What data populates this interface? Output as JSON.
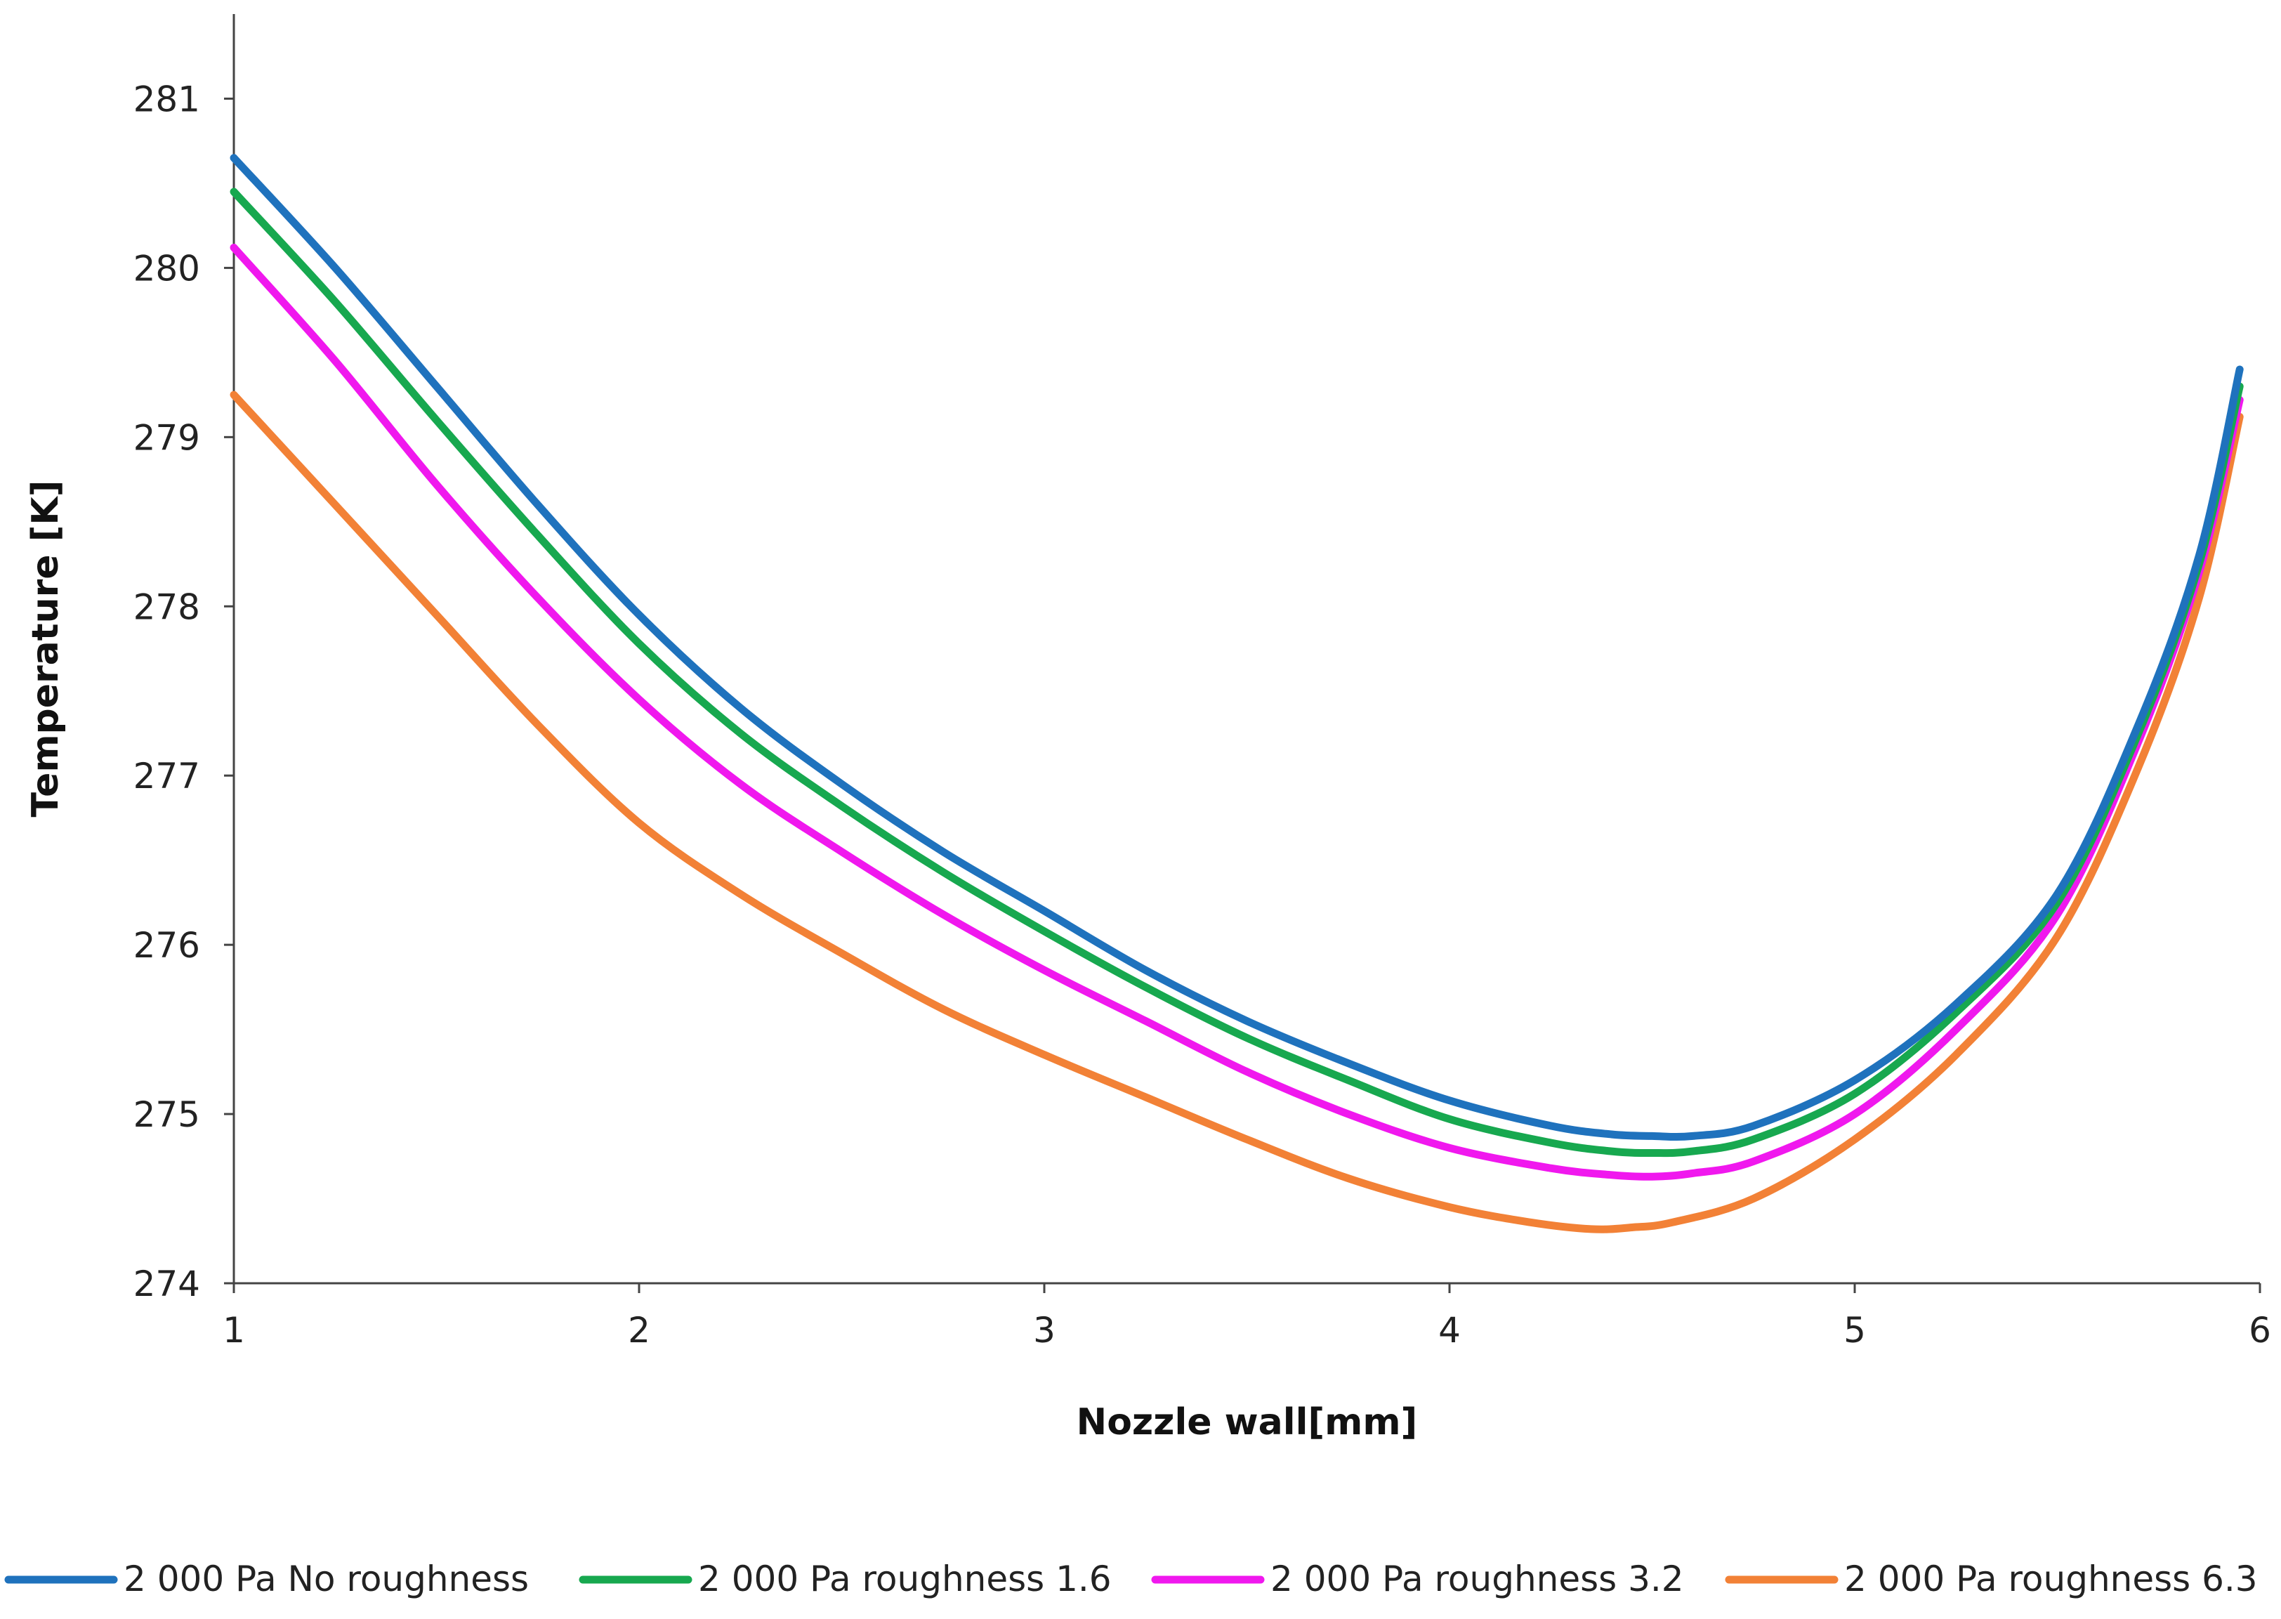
{
  "chart_data": {
    "type": "line",
    "title": "",
    "xlabel": "Nozzle wall[mm]",
    "ylabel": "Temperature [K]",
    "xlim": [
      1,
      6
    ],
    "ylim": [
      274,
      281.5
    ],
    "xticks": [
      1,
      2,
      3,
      4,
      5,
      6
    ],
    "yticks": [
      274,
      275,
      276,
      277,
      278,
      279,
      280,
      281
    ],
    "grid": false,
    "legend_position": "bottom",
    "series": [
      {
        "name": "2 000 Pa No roughness",
        "color": "#1F72BD",
        "x": [
          1.0,
          1.25,
          1.5,
          1.75,
          2.0,
          2.25,
          2.5,
          2.75,
          3.0,
          3.25,
          3.5,
          3.75,
          4.0,
          4.25,
          4.4,
          4.5,
          4.6,
          4.75,
          5.0,
          5.25,
          5.5,
          5.7,
          5.85,
          5.95
        ],
        "y": [
          280.65,
          280.0,
          279.3,
          278.6,
          277.95,
          277.4,
          276.95,
          276.55,
          276.2,
          275.85,
          275.55,
          275.3,
          275.08,
          274.93,
          274.88,
          274.87,
          274.87,
          274.93,
          275.2,
          275.65,
          276.3,
          277.3,
          278.3,
          279.4
        ]
      },
      {
        "name": "2 000 Pa roughness 1.6",
        "color": "#17A84F",
        "x": [
          1.0,
          1.25,
          1.5,
          1.75,
          2.0,
          2.25,
          2.5,
          2.75,
          3.0,
          3.25,
          3.5,
          3.75,
          4.0,
          4.25,
          4.4,
          4.5,
          4.6,
          4.75,
          5.0,
          5.25,
          5.5,
          5.7,
          5.85,
          5.95
        ],
        "y": [
          280.45,
          279.8,
          279.1,
          278.42,
          277.78,
          277.25,
          276.82,
          276.43,
          276.08,
          275.75,
          275.45,
          275.2,
          274.97,
          274.83,
          274.78,
          274.77,
          274.78,
          274.85,
          275.12,
          275.6,
          276.25,
          277.25,
          278.25,
          279.3
        ]
      },
      {
        "name": "2 000 Pa roughness 3.2",
        "color": "#F018EE",
        "x": [
          1.0,
          1.25,
          1.5,
          1.75,
          2.0,
          2.25,
          2.5,
          2.75,
          3.0,
          3.25,
          3.5,
          3.75,
          4.0,
          4.25,
          4.4,
          4.5,
          4.6,
          4.75,
          5.0,
          5.25,
          5.5,
          5.7,
          5.85,
          5.95
        ],
        "y": [
          280.12,
          279.45,
          278.72,
          278.05,
          277.45,
          276.95,
          276.55,
          276.18,
          275.85,
          275.55,
          275.25,
          275.0,
          274.8,
          274.68,
          274.64,
          274.63,
          274.65,
          274.72,
          275.0,
          275.5,
          276.18,
          277.2,
          278.2,
          279.22
        ]
      },
      {
        "name": "2 000 Pa roughness 6.3",
        "color": "#F28136",
        "x": [
          1.0,
          1.25,
          1.5,
          1.75,
          2.0,
          2.25,
          2.5,
          2.75,
          3.0,
          3.25,
          3.5,
          3.75,
          4.0,
          4.2,
          4.35,
          4.45,
          4.55,
          4.75,
          5.0,
          5.25,
          5.5,
          5.7,
          5.85,
          5.95
        ],
        "y": [
          279.25,
          278.6,
          277.95,
          277.3,
          276.72,
          276.3,
          275.95,
          275.62,
          275.35,
          275.1,
          274.85,
          274.62,
          274.45,
          274.36,
          274.32,
          274.33,
          274.36,
          274.5,
          274.85,
          275.35,
          276.05,
          277.05,
          278.05,
          279.12
        ]
      }
    ]
  }
}
